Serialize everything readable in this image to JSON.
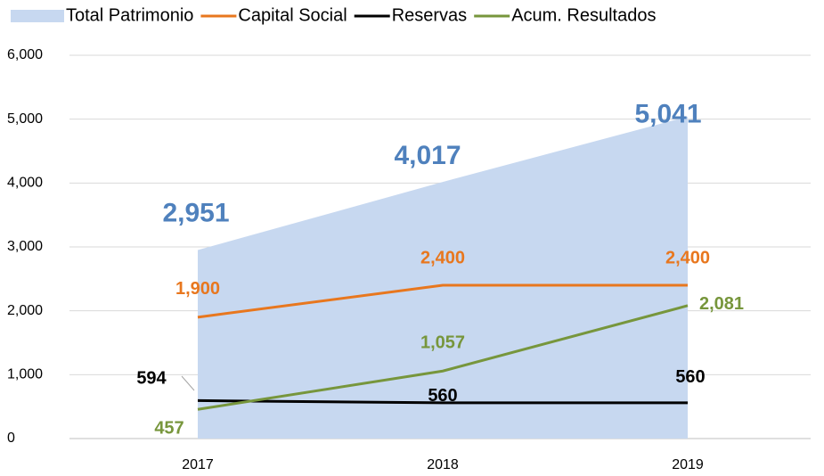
{
  "chart_data": {
    "type": "line",
    "categories": [
      "2017",
      "2018",
      "2019"
    ],
    "series": [
      {
        "name": "Total Patrimonio",
        "type": "area",
        "color": "#c7d8f0",
        "label_color": "#4f81bd",
        "values": [
          2951,
          4017,
          5041
        ],
        "value_labels": [
          "2,951",
          "4,017",
          "5,041"
        ]
      },
      {
        "name": "Capital Social",
        "color": "#e8771e",
        "values": [
          1900,
          2400,
          2400
        ],
        "value_labels": [
          "1,900",
          "2,400",
          "2,400"
        ]
      },
      {
        "name": "Reservas",
        "color": "#000000",
        "values": [
          594,
          560,
          560
        ],
        "value_labels": [
          "594",
          "560",
          "560"
        ]
      },
      {
        "name": "Acum. Resultados",
        "color": "#77963c",
        "values": [
          457,
          1057,
          2081
        ],
        "value_labels": [
          "457",
          "1,057",
          "2,081"
        ]
      }
    ],
    "ylim": [
      0,
      6000
    ],
    "yticks": [
      0,
      {
        "value": 1000,
        "label": "1,000"
      },
      {
        "value": 2000,
        "label": "2,000"
      },
      {
        "value": 3000,
        "label": "3,000"
      },
      {
        "value": 4000,
        "label": "4,000"
      },
      {
        "value": 5000,
        "label": "5,000"
      },
      {
        "value": 6000,
        "label": "6,000"
      }
    ],
    "grid": true,
    "legend": "top"
  }
}
